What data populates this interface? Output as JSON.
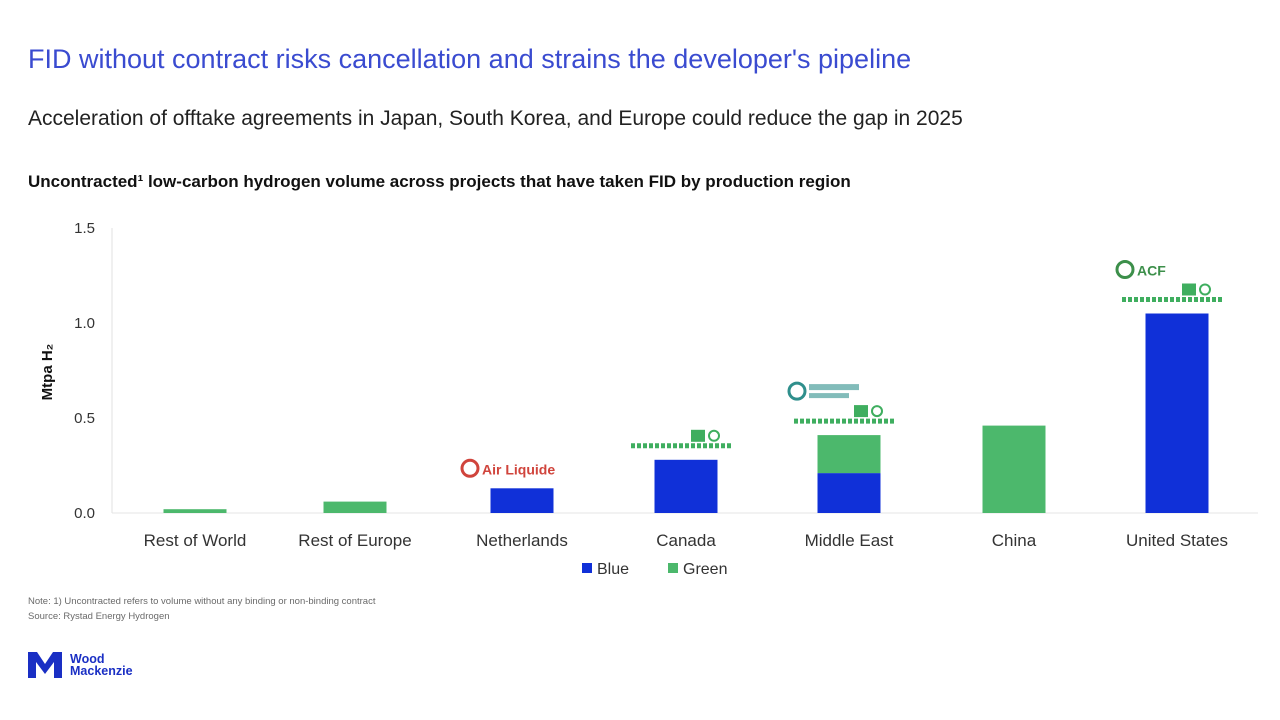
{
  "header": {
    "headline": "FID without contract risks cancellation and strains the developer's pipeline",
    "subheadline": "Acceleration of offtake agreements in Japan, South Korea, and Europe could reduce the gap in 2025"
  },
  "chart_data": {
    "type": "bar",
    "stacked": true,
    "title": "Uncontracted¹ low-carbon hydrogen volume across projects that have taken FID by production region",
    "ylabel": "Mtpa H₂",
    "xlabel": "",
    "ylim": [
      0,
      1.5
    ],
    "yticks": [
      0.0,
      0.5,
      1.0,
      1.5
    ],
    "ytick_labels": [
      "0.0",
      "0.5",
      "1.0",
      "1.5"
    ],
    "categories": [
      "Rest of World",
      "Rest of Europe",
      "Netherlands",
      "Canada",
      "Middle East",
      "China",
      "United States"
    ],
    "series": [
      {
        "name": "Blue",
        "color": "#1030d8",
        "values": [
          0,
          0,
          0.13,
          0.28,
          0.21,
          0,
          1.05
        ]
      },
      {
        "name": "Green",
        "color": "#4cb86c",
        "values": [
          0.02,
          0.06,
          0,
          0,
          0.2,
          0.46,
          0
        ]
      }
    ],
    "legend": {
      "position": "bottom-center"
    },
    "grid": false,
    "annotations": [
      {
        "category": "Netherlands",
        "kind": "logo",
        "text": "Air Liquide",
        "color": "#d0443c"
      },
      {
        "category": "Canada",
        "kind": "flag",
        "color": "#3fae5f"
      },
      {
        "category": "Middle East",
        "kind": "flag",
        "color": "#3fae5f"
      },
      {
        "category": "Middle East",
        "kind": "logo",
        "color": "#2f8f8c"
      },
      {
        "category": "United States",
        "kind": "flag",
        "color": "#3fae5f"
      },
      {
        "category": "United States",
        "kind": "logo",
        "text": "ACF",
        "color": "#3c8f4a"
      }
    ]
  },
  "footer": {
    "note": "Note: 1) Uncontracted refers to volume without any binding or non-binding contract",
    "source": "Source: Rystad Energy Hydrogen",
    "logo_line1": "Wood",
    "logo_line2": "Mackenzie"
  },
  "colors": {
    "accent": "#3a4bd0",
    "blue": "#1030d8",
    "green": "#4cb86c"
  }
}
